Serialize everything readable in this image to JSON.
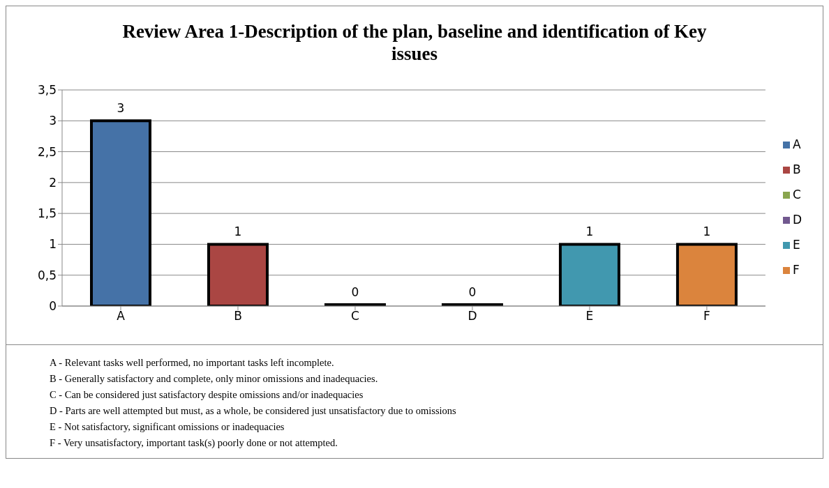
{
  "chart_data": {
    "type": "bar",
    "title": "Review Area 1-Description of the plan, baseline and identification of Key issues",
    "categories": [
      "A",
      "B",
      "C",
      "D",
      "E",
      "F"
    ],
    "stacked": true,
    "series": [
      {
        "name": "A",
        "color": "#4572a7",
        "values": [
          3,
          null,
          null,
          null,
          null,
          null
        ]
      },
      {
        "name": "B",
        "color": "#aa4643",
        "values": [
          null,
          1,
          null,
          null,
          null,
          null
        ]
      },
      {
        "name": "C",
        "color": "#89a54e",
        "values": [
          null,
          null,
          0,
          null,
          null,
          null
        ]
      },
      {
        "name": "D",
        "color": "#71588f",
        "values": [
          null,
          null,
          null,
          0,
          null,
          null
        ]
      },
      {
        "name": "E",
        "color": "#4198af",
        "values": [
          null,
          null,
          null,
          null,
          1,
          null
        ]
      },
      {
        "name": "F",
        "color": "#db843d",
        "values": [
          null,
          null,
          null,
          null,
          null,
          1
        ]
      }
    ],
    "ylim": [
      0,
      3.5
    ],
    "yticks": [
      0,
      {
        "value": 0.5,
        "label": "0,5"
      },
      1,
      {
        "value": 1.5,
        "label": "1,5"
      },
      2,
      {
        "value": 2.5,
        "label": "2,5"
      },
      3,
      {
        "value": 3.5,
        "label": "3,5"
      }
    ],
    "grid": "y",
    "legend": "right",
    "data_labels": true,
    "annotations": [
      "A -  Relevant tasks well performed, no important tasks left incomplete.",
      "B -  Generally satisfactory and complete, only minor omissions and inadequacies.",
      "C -  Can be considered just satisfactory despite omissions and/or inadequacies",
      "D -  Parts are well attempted but must, as a whole, be considered just unsatisfactory due to omissions",
      "E -  Not satisfactory, significant omissions or inadequacies",
      "F -  Very unsatisfactory, important task(s) poorly done or not attempted."
    ]
  }
}
